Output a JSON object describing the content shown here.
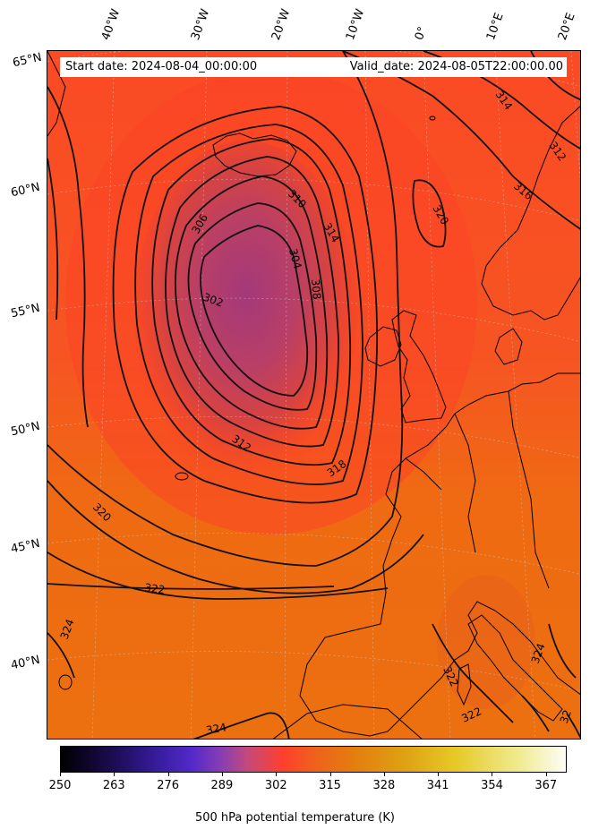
{
  "header": {
    "start_date": "Start date: 2024-08-04_00:00:00",
    "valid_date": "Valid_date: 2024-08-05T22:00:00.00"
  },
  "longitude_labels": [
    "40°W",
    "30°W",
    "20°W",
    "10°W",
    "0°",
    "10°E",
    "20°E"
  ],
  "latitude_labels": [
    "65°N",
    "60°N",
    "55°N",
    "50°N",
    "45°N",
    "40°N"
  ],
  "contour_labels": [
    "314",
    "312",
    "316",
    "320",
    "310",
    "306",
    "314",
    "304",
    "308",
    "302",
    "312",
    "318",
    "320",
    "322",
    "324",
    "324",
    "322",
    "322",
    "324",
    "324",
    "32"
  ],
  "colorbar": {
    "ticks": [
      "250",
      "263",
      "276",
      "289",
      "302",
      "315",
      "328",
      "341",
      "354",
      "367"
    ],
    "label": "500 hPa potential temperature (K)",
    "min": 250,
    "max": 372
  },
  "colors": {
    "background_warm": "#f06a12",
    "low_center": "#a93d73",
    "mid_red": "#fb4326"
  }
}
